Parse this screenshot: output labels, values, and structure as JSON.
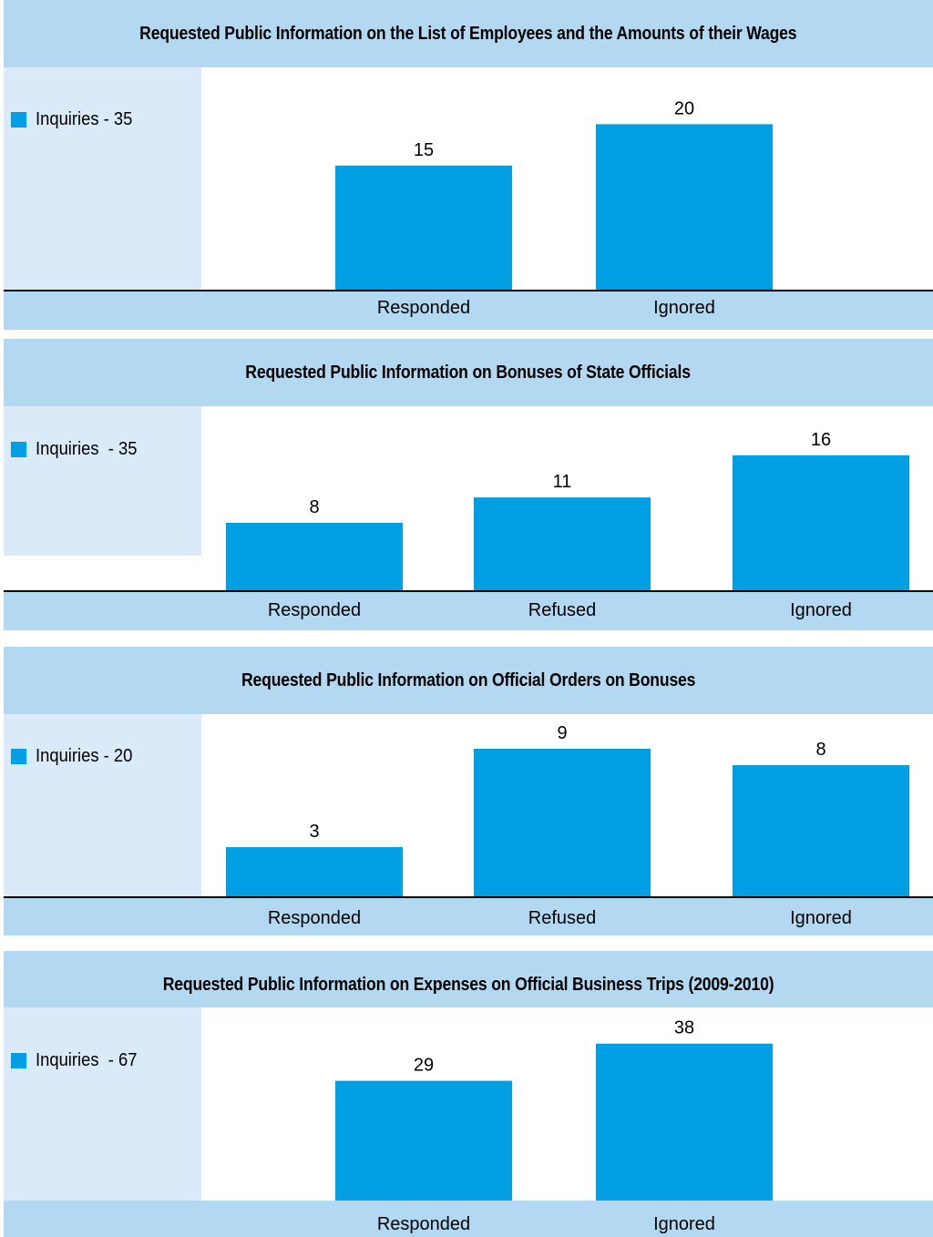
{
  "colors": {
    "bar": "#009fe3",
    "title_bg": "#b3d8f1",
    "legend_bg": "#dbeaf8"
  },
  "panels": [
    {
      "title": "Requested Public Information on the List of Employees and the Amounts of their Wages",
      "legend": "Inquiries - 35"
    },
    {
      "title": "Requested Public Information on Bonuses of State Officials",
      "legend": "Inquiries  - 35"
    },
    {
      "title": "Requested Public Information on Official Orders on Bonuses",
      "legend": "Inquiries - 20"
    },
    {
      "title": "Requested Public Information on Expenses on Official Business Trips (2009-2010)",
      "legend": "Inquiries  - 67"
    }
  ],
  "chart_data": [
    {
      "type": "bar",
      "title": "Requested Public Information on the List of Employees and the Amounts of their Wages",
      "categories": [
        "Responded",
        "Ignored"
      ],
      "series": [
        {
          "name": "Inquiries - 35",
          "values": [
            15,
            20
          ]
        }
      ],
      "ylim": [
        0,
        24
      ],
      "grid": false,
      "legend": "left"
    },
    {
      "type": "bar",
      "title": "Requested Public Information on Bonuses of State Officials",
      "categories": [
        "Responded",
        "Refused",
        "Ignored"
      ],
      "series": [
        {
          "name": "Inquiries  - 35",
          "values": [
            8,
            11,
            16
          ]
        }
      ],
      "ylim": [
        0,
        19
      ],
      "grid": false,
      "legend": "left"
    },
    {
      "type": "bar",
      "title": "Requested Public Information on Official Orders on Bonuses",
      "categories": [
        "Responded",
        "Refused",
        "Ignored"
      ],
      "series": [
        {
          "name": "Inquiries - 20",
          "values": [
            3,
            9,
            8
          ]
        }
      ],
      "ylim": [
        0,
        11
      ],
      "grid": false,
      "legend": "left"
    },
    {
      "type": "bar",
      "title": "Requested Public Information on Expenses on Official Business Trips (2009-2010)",
      "categories": [
        "Responded",
        "Ignored"
      ],
      "series": [
        {
          "name": "Inquiries  - 67",
          "values": [
            29,
            38
          ]
        }
      ],
      "ylim": [
        0,
        45
      ],
      "grid": false,
      "legend": "left"
    }
  ]
}
